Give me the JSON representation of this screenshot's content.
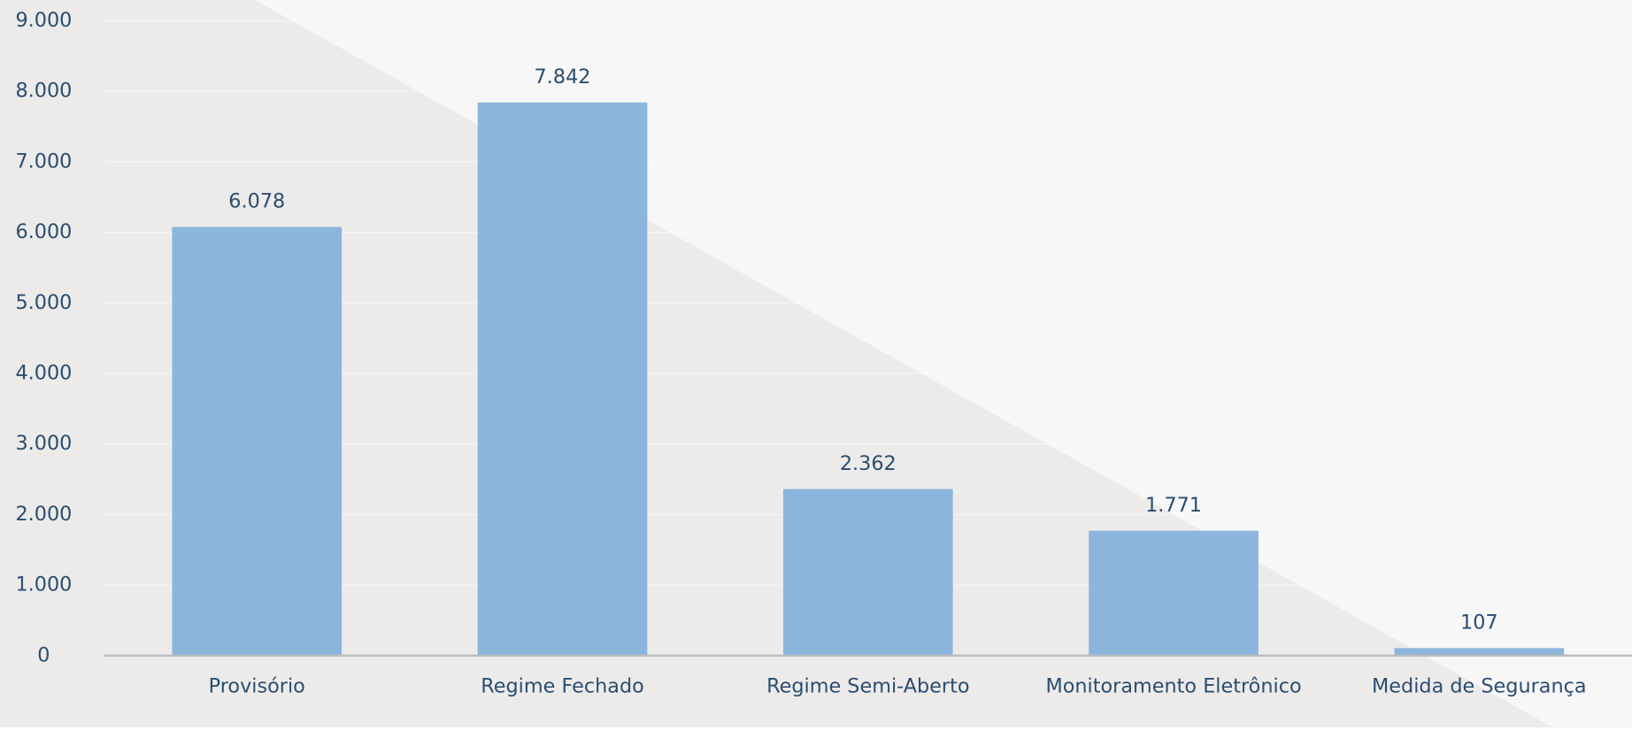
{
  "chart_data": {
    "type": "bar",
    "categories": [
      "Provisório",
      "Regime Fechado",
      "Regime Semi-Aberto",
      "Monitoramento Eletrônico",
      "Medida de Segurança"
    ],
    "values": [
      6078,
      7842,
      2362,
      1771,
      107
    ],
    "value_labels": [
      "6.078",
      "7.842",
      "2.362",
      "1.771",
      "107"
    ],
    "color": "#88b3dc",
    "ylim": [
      0,
      9000
    ],
    "yticks": [
      0,
      {
        "value": 1000,
        "label": "1.000"
      },
      {
        "value": 2000,
        "label": "2.000"
      },
      {
        "value": 3000,
        "label": "3.000"
      },
      {
        "value": 4000,
        "label": "4.000"
      },
      {
        "value": 5000,
        "label": "5.000"
      },
      {
        "value": 6000,
        "label": "6.000"
      },
      {
        "value": 7000,
        "label": "7.000"
      },
      {
        "value": 8000,
        "label": "8.000"
      },
      {
        "value": 9000,
        "label": "9.000"
      }
    ],
    "grid": true
  }
}
